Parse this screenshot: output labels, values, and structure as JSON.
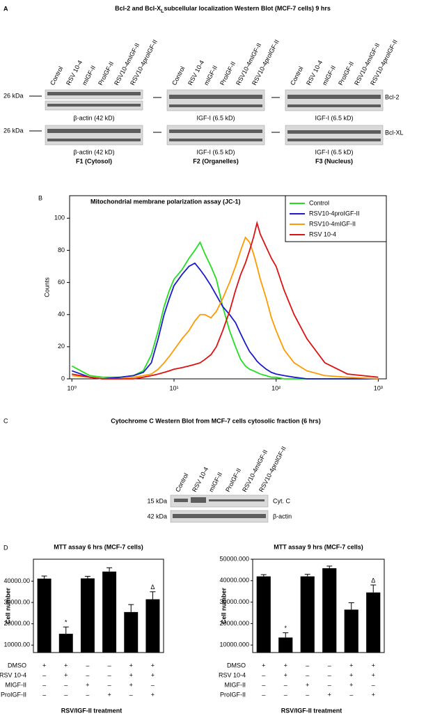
{
  "panel_a": {
    "letter": "A",
    "title": [
      "Bcl-2 and Bcl-X",
      "L",
      "subcellular localization Western Blot (MCF-7 cells) 9 hrs"
    ],
    "lanes": [
      "Control",
      "RSV 10-4",
      "mIGF-II",
      "ProIGF-II",
      "RSV10-4mIGF-II",
      "RSV10-4proIGF-II"
    ],
    "marker": "26 kDa",
    "loading_f1": "β-actin (42 kD)",
    "loading_f23": "IGF-I (6.5 kD)",
    "bands": [
      "Bcl-2",
      "Bcl-XL"
    ],
    "fractions": [
      "F1 (Cytosol)",
      "F2 (Organelles)",
      "F3 (Nucleus)"
    ]
  },
  "panel_b": {
    "letter": "B"
  },
  "panel_c": {
    "letter": "C",
    "title": "Cytochrome C Western Blot from MCF-7 cells cytosolic fraction (6 hrs)",
    "lanes": [
      "Control",
      "RSV 10-4",
      "mIGF-II",
      "ProIGF-II",
      "RSV10-4mIGF-II",
      "RSV10-4proIGF-II"
    ],
    "markers": [
      "15 kDa",
      "42 kDa"
    ],
    "bands": [
      "Cyt. C",
      "β-actin"
    ]
  },
  "panel_d": {
    "letter": "D",
    "treatment": {
      "rows": [
        {
          "label": "DMSO",
          "signs": [
            "+",
            "+",
            "–",
            "–",
            "+",
            "+"
          ]
        },
        {
          "label": "RSV 10-4",
          "signs": [
            "–",
            "+",
            "–",
            "–",
            "+",
            "+"
          ]
        },
        {
          "label": "MIGF-II",
          "signs": [
            "–",
            "–",
            "+",
            "–",
            "+",
            "–"
          ]
        },
        {
          "label": "ProIGF-II",
          "signs": [
            "–",
            "–",
            "–",
            "+",
            "–",
            "+"
          ]
        }
      ]
    }
  },
  "chart_data": [
    {
      "type": "line",
      "title": "Mitochondrial membrane polarization assay (JC-1)",
      "y_label": "Counts",
      "xscale": "log",
      "xlim": [
        0.95,
        1200
      ],
      "ylim": [
        0,
        114
      ],
      "xticks": [
        {
          "value": 1,
          "label": "10⁰"
        },
        {
          "value": 10,
          "label": "10¹"
        },
        {
          "value": 100,
          "label": "10²"
        },
        {
          "value": 1000,
          "label": "10³"
        }
      ],
      "yticks": [
        0,
        20,
        40,
        60,
        80,
        100
      ],
      "legend": "upper right",
      "x": [
        1,
        1.5,
        2,
        3,
        4,
        5,
        6,
        7,
        8,
        9,
        10,
        12,
        14,
        16,
        18,
        20,
        23,
        26,
        30,
        35,
        40,
        45,
        50,
        55,
        60,
        65,
        70,
        80,
        90,
        100,
        120,
        150,
        200,
        300,
        500,
        1000
      ],
      "series": [
        {
          "name": "Control",
          "color": "#22dd22",
          "values": [
            8,
            2,
            1,
            1,
            2,
            5,
            15,
            30,
            45,
            55,
            62,
            68,
            75,
            80,
            85,
            78,
            70,
            62,
            45,
            30,
            20,
            12,
            8,
            6,
            5,
            4,
            3,
            2,
            1,
            1,
            0,
            0,
            0,
            0,
            0,
            0
          ]
        },
        {
          "name": "RSV10-4proIGF-II",
          "color": "#1a1acc",
          "values": [
            5,
            1,
            0,
            1,
            2,
            4,
            10,
            25,
            40,
            50,
            58,
            65,
            70,
            72,
            68,
            64,
            58,
            52,
            45,
            40,
            35,
            28,
            22,
            17,
            14,
            11,
            9,
            6,
            4,
            3,
            2,
            1,
            0,
            0,
            0,
            0
          ]
        },
        {
          "name": "RSV10-4mIGF-II",
          "color": "#ff9900",
          "values": [
            2,
            1,
            0,
            0,
            1,
            2,
            3,
            6,
            10,
            14,
            18,
            25,
            30,
            36,
            40,
            40,
            38,
            42,
            50,
            60,
            70,
            80,
            88,
            85,
            78,
            70,
            62,
            50,
            38,
            30,
            18,
            10,
            5,
            2,
            1,
            0
          ]
        },
        {
          "name": "RSV 10-4",
          "color": "#dd1111",
          "values": [
            3,
            1,
            0,
            0,
            0,
            1,
            2,
            3,
            4,
            5,
            6,
            7,
            8,
            9,
            10,
            12,
            15,
            20,
            30,
            42,
            55,
            65,
            72,
            80,
            88,
            97,
            90,
            82,
            75,
            70,
            55,
            40,
            25,
            10,
            3,
            1
          ]
        }
      ]
    },
    {
      "type": "bar",
      "title": "MTT assay 6 hrs (MCF-7 cells)",
      "y_label": "Cell number",
      "x_label": "RSV/IGF-II treatment",
      "ylim": [
        6500,
        50300
      ],
      "yticks": [
        {
          "value": 10000,
          "label": "10000.00"
        },
        {
          "value": 20000,
          "label": "20000.00"
        },
        {
          "value": 30000,
          "label": "30000.00"
        },
        {
          "value": 40000,
          "label": "40000.00"
        }
      ],
      "categories": [
        null,
        null,
        null,
        null,
        null,
        null
      ],
      "series": [
        {
          "color": "#000000",
          "values": [
            41200,
            15300,
            41300,
            44500,
            25500,
            31500
          ],
          "errors": [
            1200,
            3200,
            1000,
            1800,
            3500,
            3500
          ]
        }
      ],
      "annotations": [
        null,
        "*",
        null,
        null,
        null,
        "Δ"
      ]
    },
    {
      "type": "bar",
      "title": "MTT assay 9 hrs (MCF-7 cells)",
      "y_label": "Cell number",
      "x_label": "RSV/IGF-II treatment",
      "ylim": [
        6500,
        50000
      ],
      "yticks": [
        {
          "value": 10000,
          "label": "10000.000"
        },
        {
          "value": 20000,
          "label": "20000.000"
        },
        {
          "value": 30000,
          "label": "30000.000"
        },
        {
          "value": 40000,
          "label": "40000.000"
        },
        {
          "value": 50000,
          "label": "50000.000"
        }
      ],
      "categories": [
        null,
        null,
        null,
        null,
        null,
        null
      ],
      "series": [
        {
          "color": "#000000",
          "values": [
            42000,
            13500,
            42000,
            45800,
            26500,
            34500
          ],
          "errors": [
            800,
            2200,
            1000,
            1000,
            3200,
            3500
          ]
        }
      ],
      "annotations": [
        null,
        "*",
        null,
        null,
        null,
        "Δ"
      ]
    }
  ]
}
